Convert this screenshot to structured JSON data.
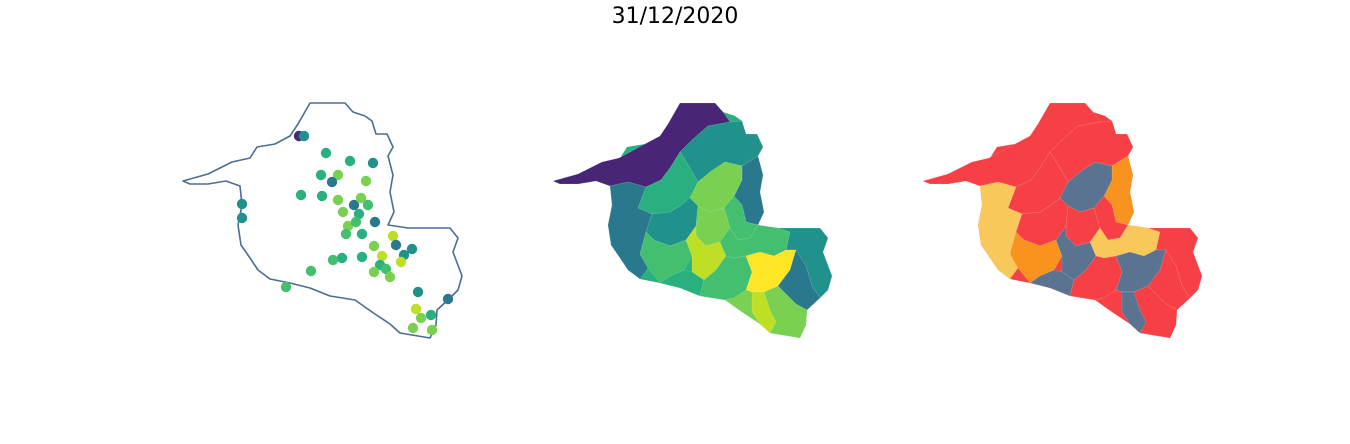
{
  "title": "31/12/2020",
  "colors": {
    "outline": "#4b6e91",
    "viridis": [
      "#482576",
      "#2a788e",
      "#21918c",
      "#2ab07f",
      "#44bf70",
      "#7ad151",
      "#bddf26",
      "#fde725"
    ],
    "classes": {
      "red": "#f64045",
      "yellow": "#f8c95a",
      "orange": "#f7931e",
      "slate": "#5a7390"
    }
  },
  "maps": [
    {
      "name": "point-map",
      "style": "outline with graduated points"
    },
    {
      "name": "choropleth-map",
      "style": "viridis choropleth"
    },
    {
      "name": "classified-map",
      "style": "four-class choropleth"
    }
  ]
}
